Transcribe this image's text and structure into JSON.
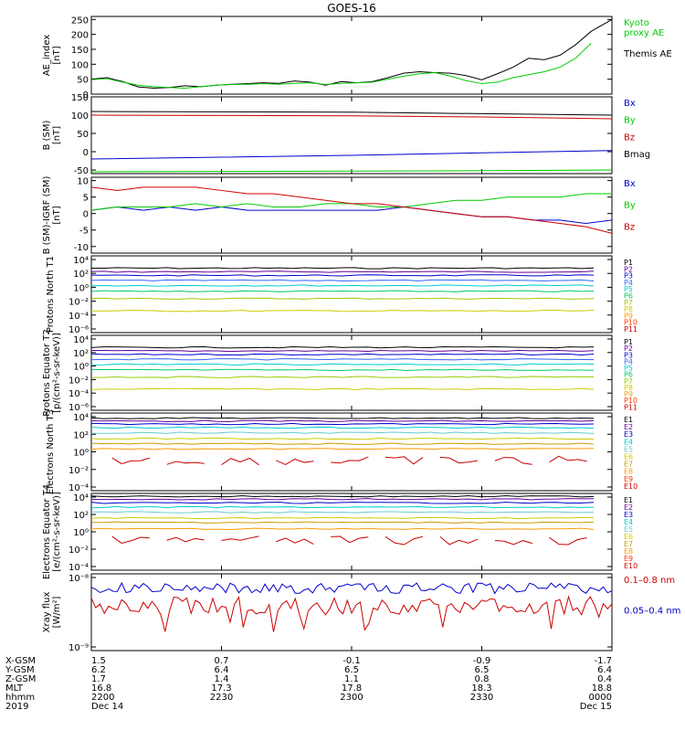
{
  "title": "GOES-16",
  "chart_data": [
    {
      "type": "line",
      "ylabel": "AE_index [nT]",
      "yticks": [
        "0",
        "50",
        "100",
        "150",
        "200",
        "250"
      ],
      "ylim": [
        0,
        260
      ],
      "legend": [
        {
          "label": "Kyoto\nproxy AE",
          "color": "#00cc00"
        },
        {
          "label": "Themis AE",
          "color": "#000000"
        }
      ],
      "series": [
        {
          "name": "Themis AE",
          "color": "#000000",
          "x": [
            0,
            3,
            6,
            9,
            12,
            15,
            18,
            21,
            24,
            27,
            30,
            33,
            36,
            39,
            42,
            45,
            48,
            51,
            54,
            57,
            60,
            63,
            66,
            69,
            72,
            75,
            78,
            81,
            84,
            87,
            90,
            93,
            96,
            100
          ],
          "y": [
            50,
            55,
            42,
            24,
            20,
            22,
            28,
            25,
            30,
            33,
            35,
            38,
            36,
            44,
            40,
            30,
            42,
            38,
            42,
            55,
            70,
            75,
            72,
            70,
            62,
            48,
            68,
            90,
            120,
            115,
            130,
            165,
            210,
            250
          ]
        },
        {
          "name": "Kyoto proxy AE",
          "color": "#00cc00",
          "x": [
            0,
            3,
            6,
            9,
            12,
            15,
            18,
            21,
            24,
            27,
            30,
            33,
            36,
            39,
            42,
            45,
            48,
            51,
            54,
            57,
            60,
            63,
            66,
            69,
            72,
            75,
            78,
            81,
            84,
            87,
            90,
            93,
            96
          ],
          "y": [
            48,
            52,
            40,
            30,
            25,
            22,
            20,
            25,
            30,
            32,
            33,
            35,
            33,
            36,
            38,
            32,
            36,
            38,
            40,
            50,
            60,
            68,
            72,
            60,
            45,
            35,
            40,
            55,
            65,
            75,
            90,
            120,
            170
          ]
        }
      ]
    },
    {
      "type": "line",
      "ylabel": "B (SM) [nT]",
      "yticks": [
        "-50",
        "0",
        "50",
        "100",
        "150"
      ],
      "ylim": [
        -60,
        150
      ],
      "legend": [
        {
          "label": "Bx",
          "color": "#0000cc"
        },
        {
          "label": "By",
          "color": "#00cc00"
        },
        {
          "label": "Bz",
          "color": "#cc0000"
        },
        {
          "label": "Bmag",
          "color": "#000000"
        }
      ],
      "series": [
        {
          "name": "Bx",
          "color": "#0000cc",
          "x": [
            0,
            25,
            50,
            75,
            100
          ],
          "y": [
            -20,
            -15,
            -10,
            -3,
            3
          ]
        },
        {
          "name": "By",
          "color": "#00cc00",
          "x": [
            0,
            25,
            50,
            75,
            100
          ],
          "y": [
            -55,
            -54,
            -53,
            -52,
            -50
          ]
        },
        {
          "name": "Bz",
          "color": "#cc0000",
          "x": [
            0,
            25,
            50,
            75,
            100
          ],
          "y": [
            100,
            99,
            98,
            95,
            90
          ]
        },
        {
          "name": "Bmag",
          "color": "#000000",
          "x": [
            0,
            25,
            50,
            75,
            100
          ],
          "y": [
            110,
            109,
            108,
            104,
            100
          ]
        }
      ]
    },
    {
      "type": "line",
      "ylabel": "B (SM)-IGRF (SM) [nT]",
      "yticks": [
        "-10",
        "-5",
        "0",
        "5",
        "10"
      ],
      "ylim": [
        -12,
        11
      ],
      "legend": [
        {
          "label": "Bx",
          "color": "#0000cc"
        },
        {
          "label": "By",
          "color": "#00cc00"
        },
        {
          "label": "Bz",
          "color": "#cc0000"
        }
      ],
      "series": [
        {
          "name": "Bx",
          "color": "#0000cc",
          "x": [
            0,
            5,
            10,
            15,
            20,
            25,
            30,
            35,
            40,
            45,
            50,
            55,
            60,
            65,
            70,
            75,
            80,
            85,
            90,
            95,
            100
          ],
          "y": [
            1,
            2,
            1,
            2,
            1,
            2,
            1,
            1,
            1,
            1,
            1,
            1,
            2,
            1,
            0,
            -1,
            -1,
            -2,
            -2,
            -3,
            -2
          ]
        },
        {
          "name": "By",
          "color": "#00cc00",
          "x": [
            0,
            5,
            10,
            15,
            20,
            25,
            30,
            35,
            40,
            45,
            50,
            55,
            60,
            65,
            70,
            75,
            80,
            85,
            90,
            95,
            100
          ],
          "y": [
            1,
            2,
            2,
            2,
            3,
            2,
            3,
            2,
            2,
            3,
            3,
            2,
            2,
            3,
            4,
            4,
            5,
            5,
            5,
            6,
            6
          ]
        },
        {
          "name": "Bz",
          "color": "#cc0000",
          "x": [
            0,
            5,
            10,
            15,
            20,
            25,
            30,
            35,
            40,
            45,
            50,
            55,
            60,
            65,
            70,
            75,
            80,
            85,
            90,
            95,
            100
          ],
          "y": [
            8,
            7,
            8,
            8,
            8,
            7,
            6,
            6,
            5,
            4,
            3,
            3,
            2,
            1,
            0,
            -1,
            -1,
            -2,
            -3,
            -4,
            -6
          ]
        }
      ]
    },
    {
      "type": "line",
      "ylabel": "Protons North T1",
      "yticks": [
        "10⁴",
        "10²",
        "10⁰",
        "10⁻²",
        "10⁻⁴",
        "10⁻⁶"
      ],
      "legend": [
        {
          "label": "P1",
          "color": "#000000"
        },
        {
          "label": "P2",
          "color": "#660099"
        },
        {
          "label": "P3",
          "color": "#0000cc"
        },
        {
          "label": "P4",
          "color": "#3366ff"
        },
        {
          "label": "P5",
          "color": "#00cccc"
        },
        {
          "label": "P6",
          "color": "#00cc66"
        },
        {
          "label": "P7",
          "color": "#99cc00"
        },
        {
          "label": "P8",
          "color": "#cccc00"
        },
        {
          "label": "P9",
          "color": "#ff9900"
        },
        {
          "label": "P10",
          "color": "#ff3300"
        },
        {
          "label": "P11",
          "color": "#cc0000"
        }
      ],
      "levels": [
        2.6,
        2.1,
        1.6,
        0.9,
        0.2,
        -0.6,
        -1.6,
        -3.3
      ],
      "level_colors": [
        "#000000",
        "#660099",
        "#0000cc",
        "#3366ff",
        "#00cccc",
        "#00cc66",
        "#99cc00",
        "#cccc00"
      ]
    },
    {
      "type": "line",
      "ylabel": "Protons Equator T2 [p/(cm²-s-sr-keV)]",
      "yticks": [
        "10⁴",
        "10²",
        "10⁰",
        "10⁻²",
        "10⁻⁴",
        "10⁻⁶"
      ],
      "legend": [
        {
          "label": "P1",
          "color": "#000000"
        },
        {
          "label": "P2",
          "color": "#660099"
        },
        {
          "label": "P3",
          "color": "#0000cc"
        },
        {
          "label": "P4",
          "color": "#3366ff"
        },
        {
          "label": "P5",
          "color": "#00cccc"
        },
        {
          "label": "P6",
          "color": "#00cc66"
        },
        {
          "label": "P7",
          "color": "#99cc00"
        },
        {
          "label": "P8",
          "color": "#cccc00"
        },
        {
          "label": "P9",
          "color": "#ff9900"
        },
        {
          "label": "P10",
          "color": "#ff3300"
        },
        {
          "label": "P11",
          "color": "#cc0000"
        }
      ],
      "levels": [
        2.6,
        2.1,
        1.6,
        0.9,
        0.2,
        -0.6,
        -1.6,
        -3.3
      ],
      "level_colors": [
        "#000000",
        "#660099",
        "#0000cc",
        "#3366ff",
        "#00cccc",
        "#00cc66",
        "#99cc00",
        "#cccc00"
      ]
    },
    {
      "type": "line",
      "ylabel": "Electrons North T3",
      "yticks": [
        "10⁴",
        "10²",
        "10⁰",
        "10⁻²",
        "10⁻⁴"
      ],
      "legend": [
        {
          "label": "E1",
          "color": "#000000"
        },
        {
          "label": "E2",
          "color": "#660099"
        },
        {
          "label": "E3",
          "color": "#0000cc"
        },
        {
          "label": "E4",
          "color": "#00cccc"
        },
        {
          "label": "E5",
          "color": "#66cccc"
        },
        {
          "label": "E6",
          "color": "#cccc00"
        },
        {
          "label": "E7",
          "color": "#cc9900"
        },
        {
          "label": "E8",
          "color": "#ff9900"
        },
        {
          "label": "E9",
          "color": "#ff3300"
        },
        {
          "label": "E10",
          "color": "#cc0000"
        }
      ],
      "levels": [
        3.6,
        3.2,
        2.8,
        2.3,
        1.6,
        0.8,
        0.1,
        -0.6
      ],
      "level_colors": [
        "#000000",
        "#660099",
        "#0000cc",
        "#00cccc",
        "#66cccc",
        "#cccc00",
        "#cc9900",
        "#ff9900"
      ]
    },
    {
      "type": "line",
      "ylabel": "Electrons Equator T4 [e/(cm²-s-sr-keV)]",
      "yticks": [
        "10⁴",
        "10²",
        "10⁰",
        "10⁻²",
        "10⁻⁴"
      ],
      "legend": [
        {
          "label": "E1",
          "color": "#000000"
        },
        {
          "label": "E2",
          "color": "#660099"
        },
        {
          "label": "E3",
          "color": "#0000cc"
        },
        {
          "label": "E4",
          "color": "#00cccc"
        },
        {
          "label": "E5",
          "color": "#66cccc"
        },
        {
          "label": "E6",
          "color": "#cccc00"
        },
        {
          "label": "E7",
          "color": "#cc9900"
        },
        {
          "label": "E8",
          "color": "#ff9900"
        },
        {
          "label": "E9",
          "color": "#ff3300"
        },
        {
          "label": "E10",
          "color": "#cc0000"
        }
      ],
      "levels": [
        3.9,
        3.5,
        3.0,
        2.4,
        1.7,
        0.9,
        0.3,
        -0.6
      ],
      "level_colors": [
        "#000000",
        "#660099",
        "#0000cc",
        "#00cccc",
        "#66cccc",
        "#cccc00",
        "#cc9900",
        "#ff9900"
      ]
    },
    {
      "type": "line",
      "ylabel": "Xray flux [W/m²]",
      "yticks": [
        "10⁻⁸",
        "10⁻⁹"
      ],
      "legend": [
        {
          "label": "0.1–0.8 nm",
          "color": "#cc0000"
        },
        {
          "label": "0.05–0.4 nm",
          "color": "#0000cc"
        }
      ]
    }
  ],
  "footer": {
    "rows": [
      {
        "label": "X-GSM",
        "values": [
          "1.5",
          "0.7",
          "-0.1",
          "-0.9",
          "-1.7"
        ]
      },
      {
        "label": "Y-GSM",
        "values": [
          "6.2",
          "6.4",
          "6.5",
          "6.5",
          "6.4"
        ]
      },
      {
        "label": "Z-GSM",
        "values": [
          "1.7",
          "1.4",
          "1.1",
          "0.8",
          "0.4"
        ]
      },
      {
        "label": "MLT",
        "values": [
          "16.8",
          "17.3",
          "17.8",
          "18.3",
          "18.8"
        ]
      },
      {
        "label": "hhmm",
        "values": [
          "2200",
          "2230",
          "2300",
          "2330",
          "0000"
        ]
      },
      {
        "label": "2019",
        "values": [
          "Dec 14",
          "",
          "",
          "",
          "Dec 15"
        ]
      }
    ]
  }
}
